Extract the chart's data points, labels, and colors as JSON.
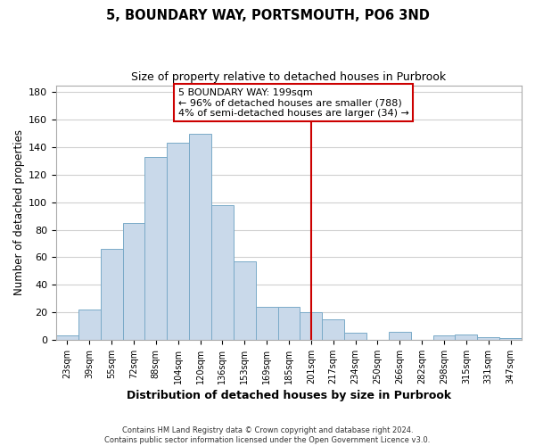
{
  "title": "5, BOUNDARY WAY, PORTSMOUTH, PO6 3ND",
  "subtitle": "Size of property relative to detached houses in Purbrook",
  "xlabel": "Distribution of detached houses by size in Purbrook",
  "ylabel": "Number of detached properties",
  "footer_line1": "Contains HM Land Registry data © Crown copyright and database right 2024.",
  "footer_line2": "Contains public sector information licensed under the Open Government Licence v3.0.",
  "bin_labels": [
    "23sqm",
    "39sqm",
    "55sqm",
    "72sqm",
    "88sqm",
    "104sqm",
    "120sqm",
    "136sqm",
    "153sqm",
    "169sqm",
    "185sqm",
    "201sqm",
    "217sqm",
    "234sqm",
    "250sqm",
    "266sqm",
    "282sqm",
    "298sqm",
    "315sqm",
    "331sqm",
    "347sqm"
  ],
  "bar_heights": [
    3,
    22,
    66,
    85,
    133,
    143,
    150,
    98,
    57,
    24,
    24,
    20,
    15,
    5,
    0,
    6,
    0,
    3,
    4,
    2,
    1
  ],
  "bar_color": "#c9d9ea",
  "bar_edge_color": "#7aaac8",
  "grid_color": "#d0d0d0",
  "vline_x": 11,
  "vline_color": "#cc0000",
  "annotation_title": "5 BOUNDARY WAY: 199sqm",
  "annotation_line1": "← 96% of detached houses are smaller (788)",
  "annotation_line2": "4% of semi-detached houses are larger (34) →",
  "annotation_box_color": "#ffffff",
  "annotation_box_edge": "#cc0000",
  "ylim": [
    0,
    185
  ],
  "yticks": [
    0,
    20,
    40,
    60,
    80,
    100,
    120,
    140,
    160,
    180
  ]
}
